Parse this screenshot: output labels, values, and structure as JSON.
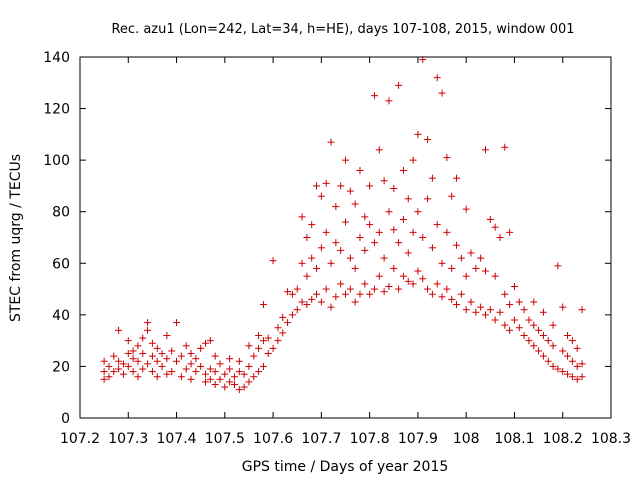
{
  "chart_data": {
    "type": "scatter",
    "title": "Rec. azu1 (Lon=242, Lat=34, h=HE), days 107-108, 2015, window 001",
    "xlabel": "GPS time / Days of year 2015",
    "ylabel": "STEC from uqrg / TECUs",
    "xlim": [
      107.2,
      108.3
    ],
    "ylim": [
      0,
      140
    ],
    "xticks": [
      "107.2",
      "107.3",
      "107.4",
      "107.5",
      "107.6",
      "107.7",
      "107.8",
      "107.9",
      "108",
      "108.1",
      "108.2",
      "108.3"
    ],
    "yticks": [
      "0",
      "20",
      "40",
      "60",
      "80",
      "100",
      "120",
      "140"
    ],
    "grid": false,
    "legend": "none",
    "marker": "plus",
    "color": "#cc0000",
    "series": [
      {
        "points": [
          [
            107.25,
            15
          ],
          [
            107.25,
            18
          ],
          [
            107.25,
            22
          ],
          [
            107.26,
            16
          ],
          [
            107.26,
            20
          ],
          [
            107.27,
            18
          ],
          [
            107.27,
            24
          ],
          [
            107.28,
            19
          ],
          [
            107.28,
            22
          ],
          [
            107.28,
            34
          ],
          [
            107.29,
            17
          ],
          [
            107.29,
            21
          ],
          [
            107.3,
            20
          ],
          [
            107.3,
            25
          ],
          [
            107.3,
            30
          ],
          [
            107.31,
            18
          ],
          [
            107.31,
            23
          ],
          [
            107.31,
            26
          ],
          [
            107.32,
            16
          ],
          [
            107.32,
            22
          ],
          [
            107.32,
            28
          ],
          [
            107.33,
            19
          ],
          [
            107.33,
            25
          ],
          [
            107.33,
            31
          ],
          [
            107.34,
            21
          ],
          [
            107.34,
            34
          ],
          [
            107.34,
            37
          ],
          [
            107.35,
            18
          ],
          [
            107.35,
            24
          ],
          [
            107.35,
            29
          ],
          [
            107.36,
            16
          ],
          [
            107.36,
            22
          ],
          [
            107.36,
            27
          ],
          [
            107.37,
            20
          ],
          [
            107.37,
            25
          ],
          [
            107.38,
            17
          ],
          [
            107.38,
            23
          ],
          [
            107.38,
            32
          ],
          [
            107.39,
            18
          ],
          [
            107.39,
            26
          ],
          [
            107.4,
            22
          ],
          [
            107.4,
            37
          ],
          [
            107.41,
            16
          ],
          [
            107.41,
            24
          ],
          [
            107.42,
            19
          ],
          [
            107.42,
            28
          ],
          [
            107.43,
            15
          ],
          [
            107.43,
            21
          ],
          [
            107.43,
            25
          ],
          [
            107.44,
            18
          ],
          [
            107.44,
            23
          ],
          [
            107.45,
            20
          ],
          [
            107.45,
            27
          ],
          [
            107.46,
            14
          ],
          [
            107.46,
            17
          ],
          [
            107.46,
            29
          ],
          [
            107.47,
            15
          ],
          [
            107.47,
            19
          ],
          [
            107.47,
            30
          ],
          [
            107.48,
            13
          ],
          [
            107.48,
            18
          ],
          [
            107.48,
            24
          ],
          [
            107.49,
            15
          ],
          [
            107.49,
            21
          ],
          [
            107.5,
            12
          ],
          [
            107.5,
            17
          ],
          [
            107.51,
            14
          ],
          [
            107.51,
            19
          ],
          [
            107.51,
            23
          ],
          [
            107.52,
            13
          ],
          [
            107.52,
            16
          ],
          [
            107.53,
            11
          ],
          [
            107.53,
            18
          ],
          [
            107.53,
            22
          ],
          [
            107.54,
            12
          ],
          [
            107.54,
            17
          ],
          [
            107.55,
            14
          ],
          [
            107.55,
            20
          ],
          [
            107.55,
            28
          ],
          [
            107.56,
            16
          ],
          [
            107.56,
            24
          ],
          [
            107.57,
            18
          ],
          [
            107.57,
            27
          ],
          [
            107.57,
            32
          ],
          [
            107.58,
            20
          ],
          [
            107.58,
            30
          ],
          [
            107.58,
            44
          ],
          [
            107.59,
            25
          ],
          [
            107.59,
            31
          ],
          [
            107.6,
            61
          ],
          [
            107.6,
            27
          ],
          [
            107.61,
            30
          ],
          [
            107.61,
            35
          ],
          [
            107.62,
            33
          ],
          [
            107.62,
            39
          ],
          [
            107.63,
            37
          ],
          [
            107.63,
            49
          ],
          [
            107.64,
            40
          ],
          [
            107.64,
            48
          ],
          [
            107.65,
            42
          ],
          [
            107.65,
            50
          ],
          [
            107.66,
            45
          ],
          [
            107.66,
            60
          ],
          [
            107.66,
            78
          ],
          [
            107.67,
            44
          ],
          [
            107.67,
            55
          ],
          [
            107.67,
            70
          ],
          [
            107.68,
            46
          ],
          [
            107.68,
            62
          ],
          [
            107.68,
            75
          ],
          [
            107.69,
            48
          ],
          [
            107.69,
            58
          ],
          [
            107.69,
            90
          ],
          [
            107.7,
            45
          ],
          [
            107.7,
            66
          ],
          [
            107.7,
            86
          ],
          [
            107.71,
            50
          ],
          [
            107.71,
            72
          ],
          [
            107.71,
            91
          ],
          [
            107.72,
            43
          ],
          [
            107.72,
            60
          ],
          [
            107.72,
            107
          ],
          [
            107.73,
            47
          ],
          [
            107.73,
            68
          ],
          [
            107.73,
            82
          ],
          [
            107.74,
            52
          ],
          [
            107.74,
            65
          ],
          [
            107.74,
            90
          ],
          [
            107.75,
            48
          ],
          [
            107.75,
            76
          ],
          [
            107.75,
            100
          ],
          [
            107.76,
            50
          ],
          [
            107.76,
            62
          ],
          [
            107.76,
            88
          ],
          [
            107.77,
            45
          ],
          [
            107.77,
            58
          ],
          [
            107.77,
            83
          ],
          [
            107.78,
            48
          ],
          [
            107.78,
            70
          ],
          [
            107.78,
            96
          ],
          [
            107.79,
            52
          ],
          [
            107.79,
            65
          ],
          [
            107.79,
            78
          ],
          [
            107.8,
            48
          ],
          [
            107.8,
            75
          ],
          [
            107.8,
            90
          ],
          [
            107.81,
            50
          ],
          [
            107.81,
            68
          ],
          [
            107.81,
            125
          ],
          [
            107.82,
            55
          ],
          [
            107.82,
            72
          ],
          [
            107.82,
            104
          ],
          [
            107.83,
            49
          ],
          [
            107.83,
            62
          ],
          [
            107.83,
            92
          ],
          [
            107.84,
            51
          ],
          [
            107.84,
            80
          ],
          [
            107.84,
            123
          ],
          [
            107.85,
            58
          ],
          [
            107.85,
            73
          ],
          [
            107.85,
            89
          ],
          [
            107.86,
            50
          ],
          [
            107.86,
            68
          ],
          [
            107.86,
            129
          ],
          [
            107.87,
            55
          ],
          [
            107.87,
            77
          ],
          [
            107.87,
            96
          ],
          [
            107.88,
            53
          ],
          [
            107.88,
            64
          ],
          [
            107.88,
            85
          ],
          [
            107.89,
            52
          ],
          [
            107.89,
            72
          ],
          [
            107.89,
            100
          ],
          [
            107.9,
            57
          ],
          [
            107.9,
            80
          ],
          [
            107.9,
            110
          ],
          [
            107.91,
            54
          ],
          [
            107.91,
            70
          ],
          [
            107.91,
            139
          ],
          [
            107.92,
            50
          ],
          [
            107.92,
            85
          ],
          [
            107.92,
            108
          ],
          [
            107.93,
            48
          ],
          [
            107.93,
            66
          ],
          [
            107.93,
            93
          ],
          [
            107.94,
            52
          ],
          [
            107.94,
            75
          ],
          [
            107.94,
            132
          ],
          [
            107.95,
            47
          ],
          [
            107.95,
            60
          ],
          [
            107.95,
            126
          ],
          [
            107.96,
            50
          ],
          [
            107.96,
            72
          ],
          [
            107.96,
            101
          ],
          [
            107.97,
            46
          ],
          [
            107.97,
            58
          ],
          [
            107.97,
            86
          ],
          [
            107.98,
            44
          ],
          [
            107.98,
            67
          ],
          [
            107.98,
            93
          ],
          [
            107.99,
            48
          ],
          [
            107.99,
            62
          ],
          [
            108.0,
            42
          ],
          [
            108.0,
            55
          ],
          [
            108.0,
            81
          ],
          [
            108.01,
            45
          ],
          [
            108.01,
            64
          ],
          [
            108.02,
            41
          ],
          [
            108.02,
            58
          ],
          [
            108.03,
            43
          ],
          [
            108.03,
            62
          ],
          [
            108.04,
            40
          ],
          [
            108.04,
            57
          ],
          [
            108.04,
            104
          ],
          [
            108.05,
            42
          ],
          [
            108.05,
            77
          ],
          [
            108.06,
            38
          ],
          [
            108.06,
            55
          ],
          [
            108.06,
            74
          ],
          [
            108.07,
            41
          ],
          [
            108.07,
            70
          ],
          [
            108.08,
            36
          ],
          [
            108.08,
            48
          ],
          [
            108.08,
            105
          ],
          [
            108.09,
            34
          ],
          [
            108.09,
            44
          ],
          [
            108.09,
            72
          ],
          [
            108.1,
            38
          ],
          [
            108.1,
            51
          ],
          [
            108.11,
            35
          ],
          [
            108.11,
            45
          ],
          [
            108.12,
            32
          ],
          [
            108.12,
            42
          ],
          [
            108.13,
            30
          ],
          [
            108.13,
            38
          ],
          [
            108.14,
            28
          ],
          [
            108.14,
            36
          ],
          [
            108.14,
            45
          ],
          [
            108.15,
            26
          ],
          [
            108.15,
            34
          ],
          [
            108.16,
            24
          ],
          [
            108.16,
            32
          ],
          [
            108.16,
            41
          ],
          [
            108.17,
            22
          ],
          [
            108.17,
            30
          ],
          [
            108.18,
            20
          ],
          [
            108.18,
            28
          ],
          [
            108.18,
            36
          ],
          [
            108.19,
            19
          ],
          [
            108.19,
            59
          ],
          [
            108.2,
            18
          ],
          [
            108.2,
            26
          ],
          [
            108.2,
            43
          ],
          [
            108.21,
            17
          ],
          [
            108.21,
            24
          ],
          [
            108.21,
            32
          ],
          [
            108.22,
            16
          ],
          [
            108.22,
            22
          ],
          [
            108.22,
            30
          ],
          [
            108.23,
            15
          ],
          [
            108.23,
            20
          ],
          [
            108.23,
            27
          ],
          [
            108.24,
            16
          ],
          [
            108.24,
            21
          ],
          [
            108.24,
            42
          ]
        ]
      }
    ]
  }
}
